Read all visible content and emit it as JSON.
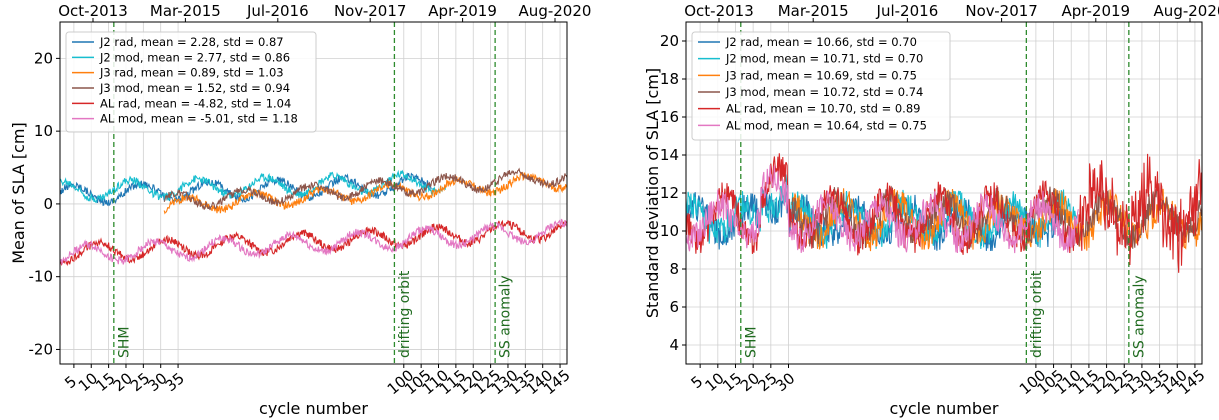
{
  "chart_data": [
    {
      "type": "line",
      "title": "",
      "xlabel": "cycle number",
      "ylabel": "Mean of SLA [cm]",
      "xlim": [
        1,
        147
      ],
      "ylim": [
        -22,
        25
      ],
      "x_ticks": [
        5,
        10,
        15,
        20,
        25,
        30,
        35,
        100,
        105,
        110,
        115,
        120,
        125,
        130,
        135,
        140,
        145
      ],
      "y_ticks": [
        -20,
        -10,
        0,
        10,
        20
      ],
      "top_axis_ticks": [
        "Oct-2013",
        "Mar-2015",
        "Jul-2016",
        "Nov-2017",
        "Apr-2019",
        "Aug-2020"
      ],
      "grid": true,
      "legend_position": "top-left",
      "annotations": [
        {
          "label": "SHM",
          "x": 16.5
        },
        {
          "label": "drifting orbit",
          "x": 97.3
        },
        {
          "label": "SS anomaly",
          "x": 126.3
        }
      ],
      "series": [
        {
          "name": "J2 rad, mean = 2.28, std = 0.87",
          "color": "#1f77b4",
          "x_range": [
            1,
            108
          ],
          "start": 1.3,
          "end": 2.6,
          "amplitude": 1.2
        },
        {
          "name": "J2 mod, mean = 2.77, std = 0.86",
          "color": "#17becf",
          "x_range": [
            1,
            112
          ],
          "start": 1.8,
          "end": 3.0,
          "amplitude": 1.2
        },
        {
          "name": "J3 rad, mean = 0.89, std = 1.03",
          "color": "#ff7f0e",
          "x_range": [
            31,
            147
          ],
          "start": -0.3,
          "end": 3.2,
          "amplitude": 1.0
        },
        {
          "name": "J3 mod, mean = 1.52, std = 0.94",
          "color": "#8c564b",
          "x_range": [
            31,
            147
          ],
          "start": 0.3,
          "end": 3.8,
          "amplitude": 1.0
        },
        {
          "name": "AL rad, mean = -4.82, std = 1.04",
          "color": "#d62728",
          "x_range": [
            1,
            147
          ],
          "start": -6.8,
          "end": -3.5,
          "amplitude": 1.2
        },
        {
          "name": "AL mod, mean = -5.01, std = 1.18",
          "color": "#e377c2",
          "x_range": [
            1,
            147
          ],
          "start": -7.0,
          "end": -3.8,
          "amplitude": 1.2
        }
      ]
    },
    {
      "type": "line",
      "title": "",
      "xlabel": "cycle number",
      "ylabel": "Standard deviation of SLA [cm]",
      "xlim": [
        1,
        147
      ],
      "ylim": [
        3,
        21
      ],
      "x_ticks": [
        5,
        10,
        15,
        20,
        25,
        30,
        100,
        105,
        110,
        115,
        120,
        125,
        130,
        135,
        140,
        145
      ],
      "y_ticks": [
        4,
        6,
        8,
        10,
        12,
        14,
        16,
        18,
        20
      ],
      "top_axis_ticks": [
        "Oct-2013",
        "Mar-2015",
        "Jul-2016",
        "Nov-2017",
        "Apr-2019",
        "Aug-2020"
      ],
      "grid": true,
      "legend_position": "top-left",
      "annotations": [
        {
          "label": "SHM",
          "x": 16.5
        },
        {
          "label": "drifting orbit",
          "x": 97.3
        },
        {
          "label": "SS anomaly",
          "x": 126.3
        }
      ],
      "series": [
        {
          "name": "J2 rad, mean = 10.66, std = 0.70",
          "color": "#1f77b4",
          "x_range": [
            1,
            108
          ],
          "base": 10.5,
          "amplitude": 0.8
        },
        {
          "name": "J2 mod, mean = 10.71, std = 0.70",
          "color": "#17becf",
          "x_range": [
            1,
            112
          ],
          "base": 10.6,
          "amplitude": 0.8
        },
        {
          "name": "J3 rad, mean = 10.69, std = 0.75",
          "color": "#ff7f0e",
          "x_range": [
            31,
            147
          ],
          "base": 10.6,
          "amplitude": 0.9
        },
        {
          "name": "J3 mod, mean = 10.72, std = 0.74",
          "color": "#8c564b",
          "x_range": [
            31,
            147
          ],
          "base": 10.7,
          "amplitude": 0.9
        },
        {
          "name": "AL rad, mean = 10.70, std = 0.89",
          "color": "#d62728",
          "x_range": [
            1,
            147
          ],
          "base": 10.7,
          "amplitude": 1.2
        },
        {
          "name": "AL mod, mean = 10.64, std = 0.75",
          "color": "#e377c2",
          "x_range": [
            1,
            112
          ],
          "base": 10.5,
          "amplitude": 0.9
        }
      ]
    }
  ]
}
